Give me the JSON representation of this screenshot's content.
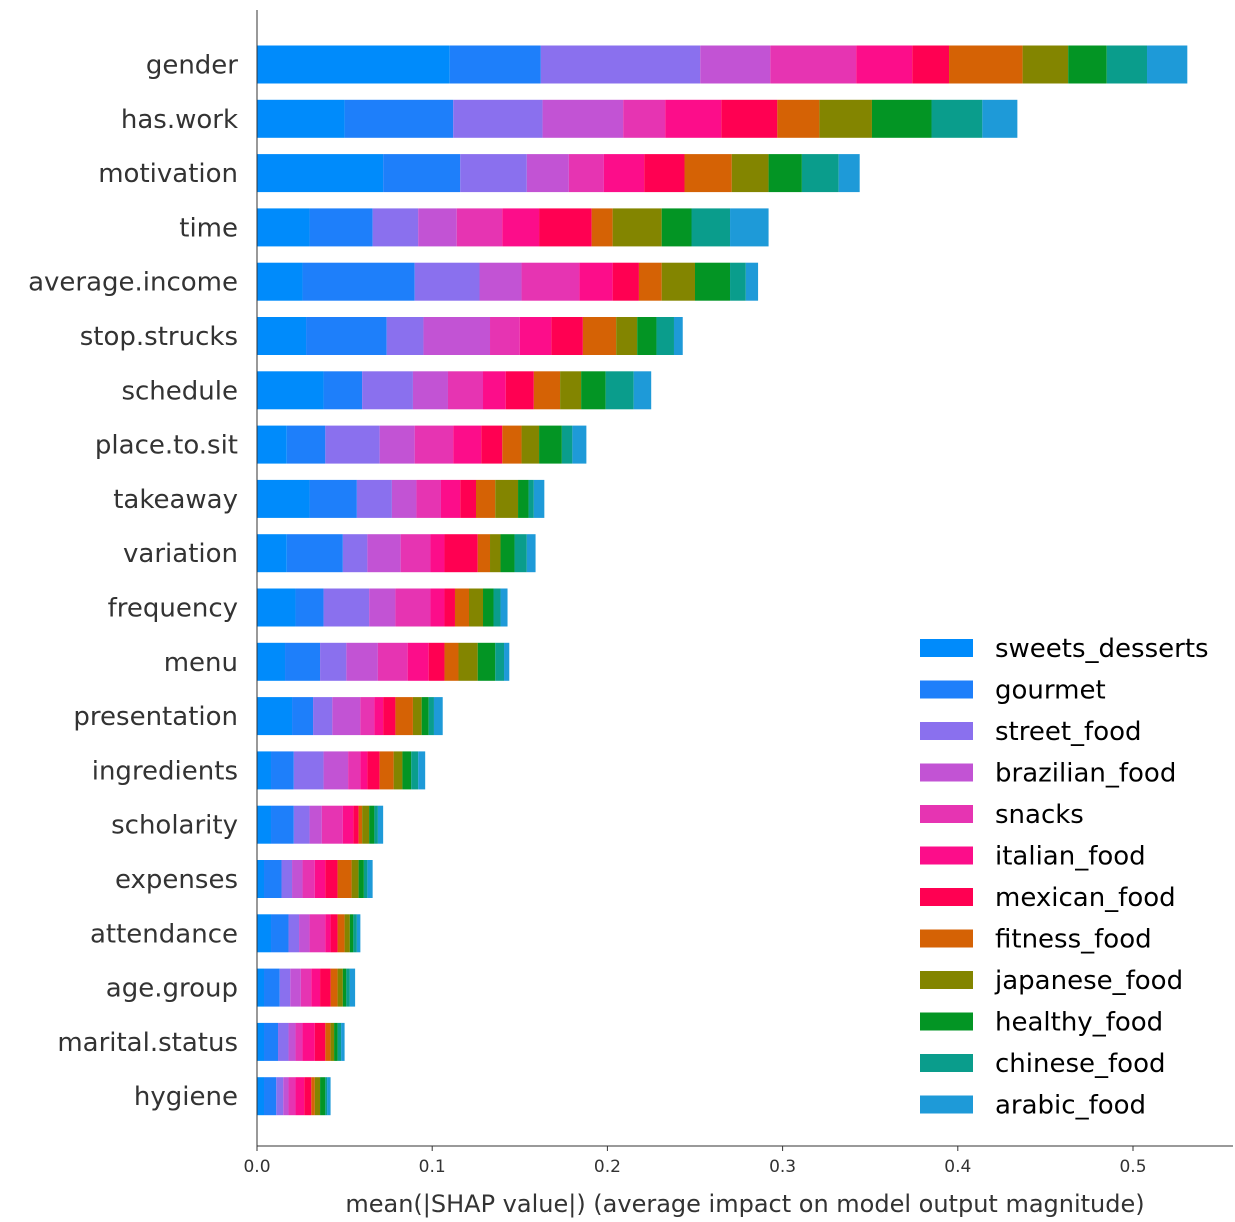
{
  "chart_data": {
    "type": "bar",
    "orientation": "horizontal",
    "stacked": true,
    "title": "",
    "xlabel": "mean(|SHAP value|) (average impact on model output magnitude)",
    "ylabel": "",
    "xlim": [
      0.0,
      0.55
    ],
    "x_ticks": [
      "0.0",
      "0.1",
      "0.2",
      "0.3",
      "0.4",
      "0.5"
    ],
    "grid": false,
    "legend_position": "lower right",
    "categories": [
      "gender",
      "has.work",
      "motivation",
      "time",
      "average.income",
      "stop.strucks",
      "schedule",
      "place.to.sit",
      "takeaway",
      "variation",
      "frequency",
      "menu",
      "presentation",
      "ingredients",
      "scholarity",
      "expenses",
      "attendance",
      "age.group",
      "marital.status",
      "hygiene"
    ],
    "series": [
      {
        "name": "sweets_desserts",
        "color": "#008bfb",
        "values": [
          0.11,
          0.05,
          0.072,
          0.03,
          0.026,
          0.028,
          0.038,
          0.017,
          0.03,
          0.017,
          0.022,
          0.016,
          0.02,
          0.008,
          0.008,
          0.004,
          0.008,
          0.004,
          0.004,
          0.004
        ]
      },
      {
        "name": "gourmet",
        "color": "#1e7ffa",
        "values": [
          0.052,
          0.062,
          0.044,
          0.036,
          0.064,
          0.046,
          0.022,
          0.022,
          0.027,
          0.032,
          0.016,
          0.02,
          0.012,
          0.013,
          0.013,
          0.01,
          0.01,
          0.009,
          0.008,
          0.007
        ]
      },
      {
        "name": "street_food",
        "color": "#8a70ee",
        "values": [
          0.091,
          0.051,
          0.038,
          0.026,
          0.037,
          0.021,
          0.029,
          0.031,
          0.02,
          0.014,
          0.026,
          0.015,
          0.011,
          0.017,
          0.009,
          0.006,
          0.006,
          0.006,
          0.006,
          0.004
        ]
      },
      {
        "name": "brazilian_food",
        "color": "#c253d4",
        "values": [
          0.04,
          0.046,
          0.024,
          0.022,
          0.024,
          0.038,
          0.02,
          0.02,
          0.014,
          0.019,
          0.015,
          0.018,
          0.016,
          0.014,
          0.007,
          0.006,
          0.006,
          0.006,
          0.004,
          0.003
        ]
      },
      {
        "name": "snacks",
        "color": "#e634b2",
        "values": [
          0.049,
          0.024,
          0.02,
          0.026,
          0.033,
          0.017,
          0.02,
          0.022,
          0.014,
          0.017,
          0.02,
          0.017,
          0.008,
          0.007,
          0.012,
          0.007,
          0.009,
          0.006,
          0.004,
          0.004
        ]
      },
      {
        "name": "italian_food",
        "color": "#fc0d8a",
        "values": [
          0.032,
          0.032,
          0.023,
          0.021,
          0.019,
          0.018,
          0.013,
          0.016,
          0.011,
          0.008,
          0.008,
          0.012,
          0.005,
          0.004,
          0.006,
          0.006,
          0.003,
          0.005,
          0.007,
          0.005
        ]
      },
      {
        "name": "mexican_food",
        "color": "#ff0052",
        "values": [
          0.021,
          0.032,
          0.023,
          0.03,
          0.015,
          0.018,
          0.016,
          0.012,
          0.009,
          0.019,
          0.006,
          0.009,
          0.007,
          0.007,
          0.003,
          0.007,
          0.004,
          0.006,
          0.006,
          0.004
        ]
      },
      {
        "name": "fitness_food",
        "color": "#d56205",
        "values": [
          0.042,
          0.024,
          0.027,
          0.012,
          0.013,
          0.019,
          0.015,
          0.011,
          0.011,
          0.007,
          0.008,
          0.008,
          0.01,
          0.008,
          0.002,
          0.008,
          0.004,
          0.004,
          0.003,
          0.002
        ]
      },
      {
        "name": "japanese_food",
        "color": "#838500",
        "values": [
          0.026,
          0.03,
          0.021,
          0.028,
          0.019,
          0.012,
          0.012,
          0.01,
          0.013,
          0.006,
          0.008,
          0.011,
          0.005,
          0.005,
          0.004,
          0.004,
          0.003,
          0.003,
          0.002,
          0.003
        ]
      },
      {
        "name": "healthy_food",
        "color": "#039524",
        "values": [
          0.022,
          0.034,
          0.019,
          0.017,
          0.02,
          0.011,
          0.014,
          0.013,
          0.006,
          0.008,
          0.006,
          0.01,
          0.004,
          0.005,
          0.003,
          0.003,
          0.002,
          0.002,
          0.002,
          0.003
        ]
      },
      {
        "name": "chinese_food",
        "color": "#0a9d8c",
        "values": [
          0.023,
          0.029,
          0.021,
          0.022,
          0.009,
          0.01,
          0.016,
          0.006,
          0.003,
          0.007,
          0.004,
          0.005,
          0.003,
          0.004,
          0.002,
          0.002,
          0.002,
          0.002,
          0.002,
          0.001
        ]
      },
      {
        "name": "arabic_food",
        "color": "#1e9ad8",
        "values": [
          0.023,
          0.02,
          0.012,
          0.022,
          0.007,
          0.005,
          0.01,
          0.008,
          0.006,
          0.005,
          0.004,
          0.003,
          0.005,
          0.004,
          0.003,
          0.003,
          0.002,
          0.003,
          0.002,
          0.002
        ]
      }
    ]
  }
}
